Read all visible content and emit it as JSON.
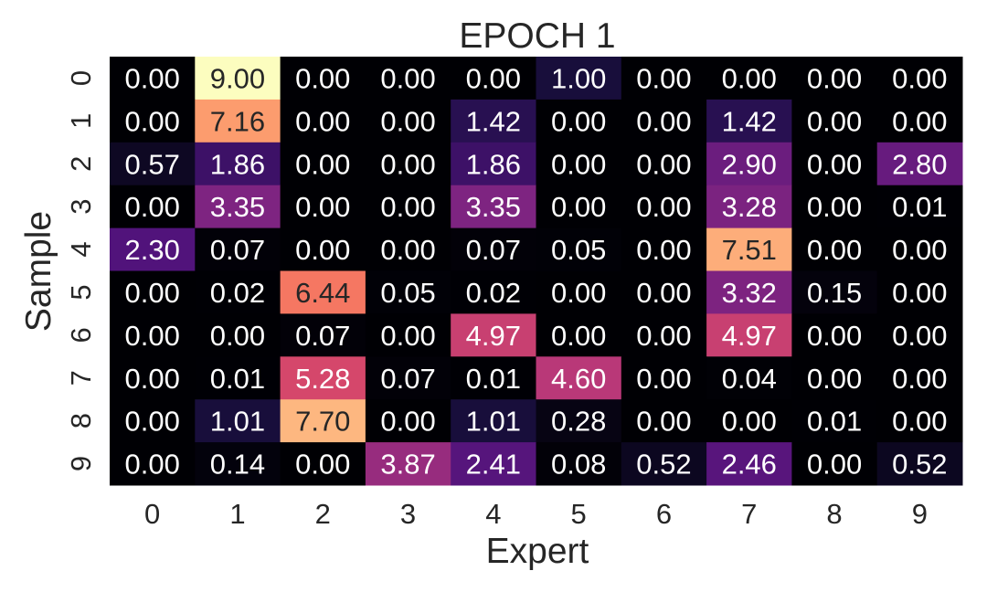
{
  "chart_data": {
    "type": "heatmap",
    "title": "EPOCH 1",
    "xlabel": "Expert",
    "ylabel": "Sample",
    "x_categories": [
      "0",
      "1",
      "2",
      "3",
      "4",
      "5",
      "6",
      "7",
      "8",
      "9"
    ],
    "y_categories": [
      "0",
      "1",
      "2",
      "3",
      "4",
      "5",
      "6",
      "7",
      "8",
      "9"
    ],
    "colormap": "magma",
    "vmin": 0,
    "vmax": 9,
    "value_format": "0.00",
    "values": [
      [
        0.0,
        9.0,
        0.0,
        0.0,
        0.0,
        1.0,
        0.0,
        0.0,
        0.0,
        0.0
      ],
      [
        0.0,
        7.16,
        0.0,
        0.0,
        1.42,
        0.0,
        0.0,
        1.42,
        0.0,
        0.0
      ],
      [
        0.57,
        1.86,
        0.0,
        0.0,
        1.86,
        0.0,
        0.0,
        2.9,
        0.0,
        2.8
      ],
      [
        0.0,
        3.35,
        0.0,
        0.0,
        3.35,
        0.0,
        0.0,
        3.28,
        0.0,
        0.01
      ],
      [
        2.3,
        0.07,
        0.0,
        0.0,
        0.07,
        0.05,
        0.0,
        7.51,
        0.0,
        0.0
      ],
      [
        0.0,
        0.02,
        6.44,
        0.05,
        0.02,
        0.0,
        0.0,
        3.32,
        0.15,
        0.0
      ],
      [
        0.0,
        0.0,
        0.07,
        0.0,
        4.97,
        0.0,
        0.0,
        4.97,
        0.0,
        0.0
      ],
      [
        0.0,
        0.01,
        5.28,
        0.07,
        0.01,
        4.6,
        0.0,
        0.04,
        0.0,
        0.0
      ],
      [
        0.0,
        1.01,
        7.7,
        0.0,
        1.01,
        0.28,
        0.0,
        0.0,
        0.01,
        0.0
      ],
      [
        0.0,
        0.14,
        0.0,
        3.87,
        2.41,
        0.08,
        0.52,
        2.46,
        0.0,
        0.52
      ]
    ],
    "colorbar": false
  }
}
